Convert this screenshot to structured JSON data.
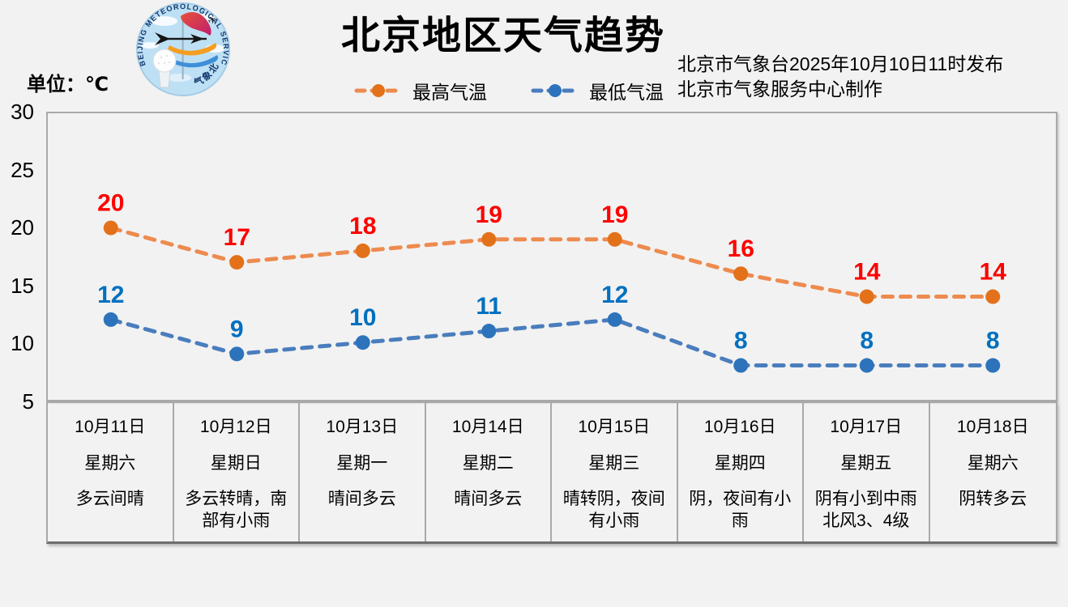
{
  "page": {
    "background": "#F2F2F2",
    "border_color": "#A9A9A9"
  },
  "header": {
    "title": "北京地区天气趋势",
    "issue_line1": "北京市气象台2025年10月10日11时发布",
    "issue_line2": "北京市气象服务中心制作",
    "unit_label": "单位：℃",
    "logo": {
      "text_arc": "BEIJING METEOROLOGICAL SERVICE",
      "text_bottom": "气象北京"
    }
  },
  "legend": [
    {
      "label": "最高气温",
      "line_color": "#ED8B4F",
      "marker_color": "#E2711A"
    },
    {
      "label": "最低气温",
      "line_color": "#4A7DBD",
      "marker_color": "#2D73BB"
    }
  ],
  "chart_data": {
    "type": "line",
    "title": "北京地区天气趋势",
    "ylabel": "单位：℃",
    "ylim": [
      5,
      30
    ],
    "yticks": [
      30,
      25,
      20,
      15,
      10,
      5
    ],
    "grid": false,
    "legend_position": "top",
    "line_style": "dashed",
    "categories": [
      "10月11日",
      "10月12日",
      "10月13日",
      "10月14日",
      "10月15日",
      "10月16日",
      "10月17日",
      "10月18日"
    ],
    "series": [
      {
        "name": "最高气温",
        "values": [
          20,
          17,
          18,
          19,
          19,
          16,
          14,
          14
        ],
        "line_color": "#ED8B4F",
        "marker_color": "#E2711A",
        "label_color": "#FE0000"
      },
      {
        "name": "最低气温",
        "values": [
          12,
          9,
          10,
          11,
          12,
          8,
          8,
          8
        ],
        "line_color": "#4A7DBD",
        "marker_color": "#2D73BB",
        "label_color": "#0070C0"
      }
    ]
  },
  "table": {
    "days": [
      {
        "date": "10月11日",
        "weekday": "星期六",
        "weather": "多云间晴"
      },
      {
        "date": "10月12日",
        "weekday": "星期日",
        "weather": "多云转晴，南\n部有小雨"
      },
      {
        "date": "10月13日",
        "weekday": "星期一",
        "weather": "晴间多云"
      },
      {
        "date": "10月14日",
        "weekday": "星期二",
        "weather": "晴间多云"
      },
      {
        "date": "10月15日",
        "weekday": "星期三",
        "weather": "晴转阴，夜间\n有小雨"
      },
      {
        "date": "10月16日",
        "weekday": "星期四",
        "weather": "阴，夜间有小\n雨"
      },
      {
        "date": "10月17日",
        "weekday": "星期五",
        "weather": "阴有小到中雨\n北风3、4级"
      },
      {
        "date": "10月18日",
        "weekday": "星期六",
        "weather": "阴转多云"
      }
    ]
  }
}
